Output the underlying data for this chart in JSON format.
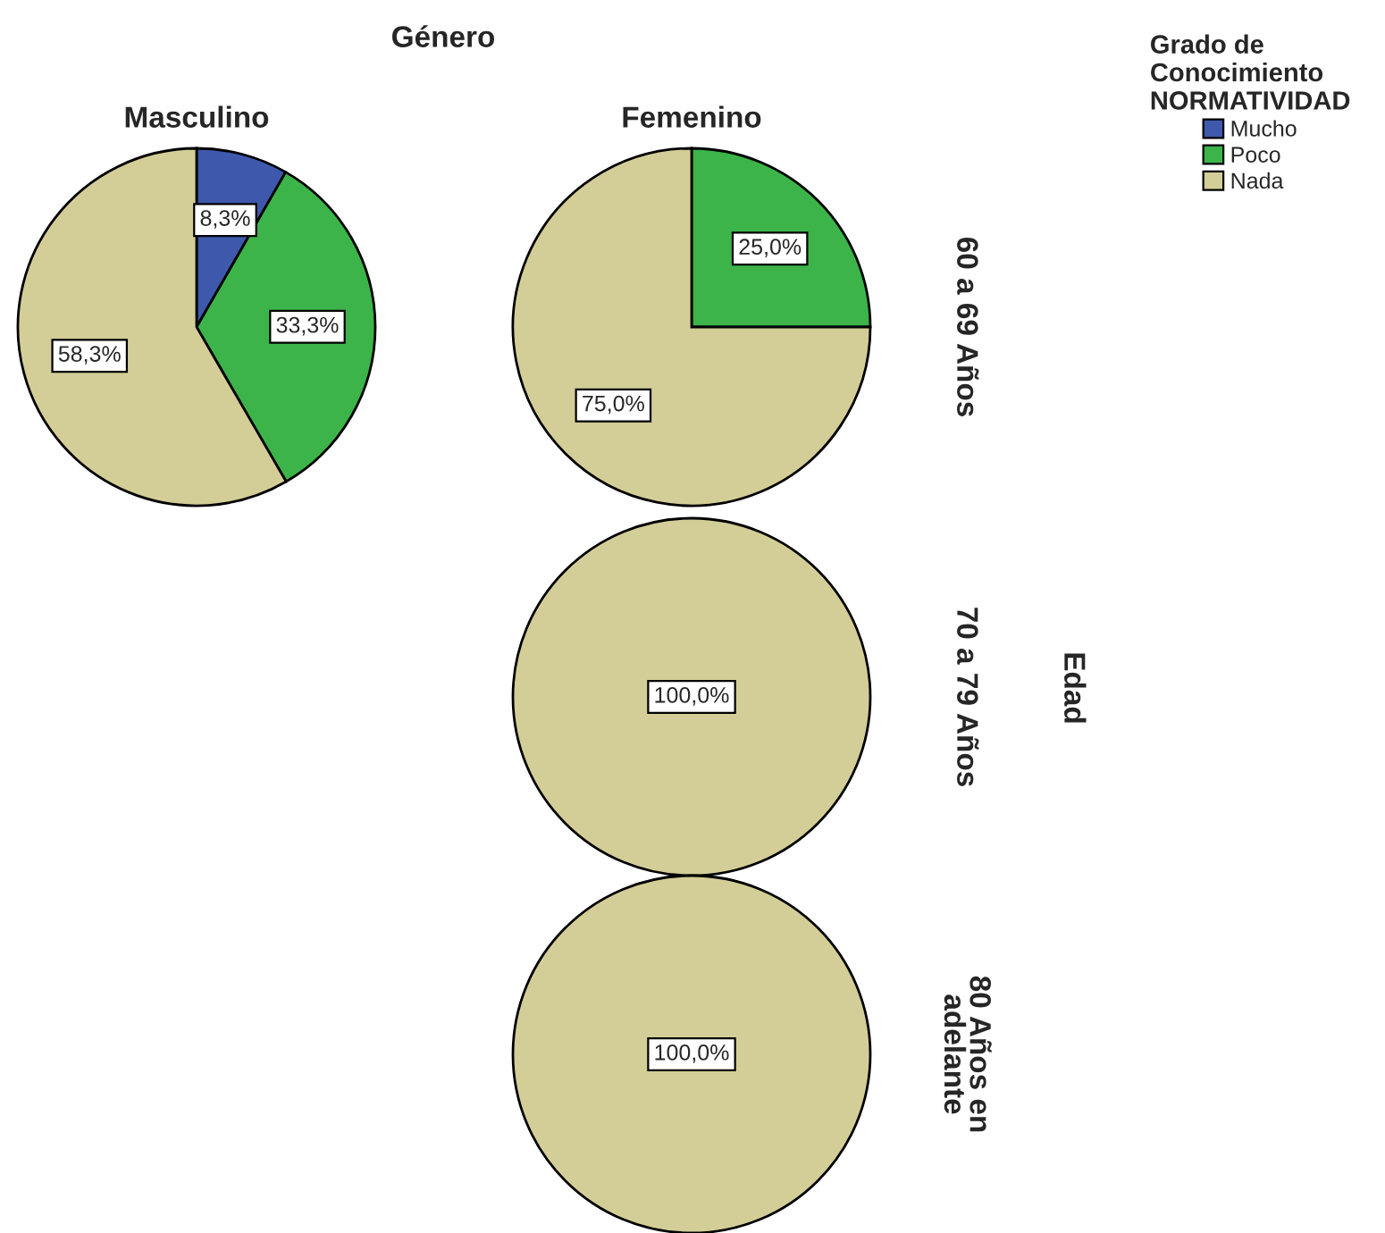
{
  "chart_data": [
    {
      "type": "pie",
      "title": "Masculino",
      "categories": [
        "Mucho",
        "Poco",
        "Nada"
      ],
      "values": [
        8.3,
        33.3,
        58.3
      ],
      "colors": [
        "#3e58ac",
        "#3cb44a",
        "#d3ce97"
      ],
      "value_labels": [
        "8,3%",
        "33,3%",
        "58,3%"
      ],
      "legend": "top right",
      "legend_title": "Grado de\nConocimiento\nNORMATIVIDAD",
      "annotations": [
        "Género",
        "Edad"
      ]
    },
    {
      "type": "pie",
      "title": "Femenino",
      "y2label": "60 a 69 Años",
      "values": [
        0,
        25.0,
        75.0
      ],
      "colors": [
        "#3e58ac",
        "#3cb44a",
        "#d3ce97"
      ],
      "value_labels": [
        null,
        "25,0%",
        "75,0%"
      ]
    },
    {
      "type": "pie",
      "y2label": "70 a 79 Años",
      "values": [
        0,
        0,
        100.0
      ],
      "colors": [
        "#3e58ac",
        "#3cb44a",
        "#d3ce97"
      ],
      "value_labels": [
        null,
        null,
        "100,0%"
      ]
    },
    {
      "type": "pie",
      "y2label": "80 Años en\nadelante",
      "values": [
        0,
        0,
        100.0
      ],
      "colors": [
        "#3e58ac",
        "#3cb44a",
        "#d3ce97"
      ],
      "value_labels": [
        null,
        null,
        "100,0%"
      ]
    }
  ]
}
